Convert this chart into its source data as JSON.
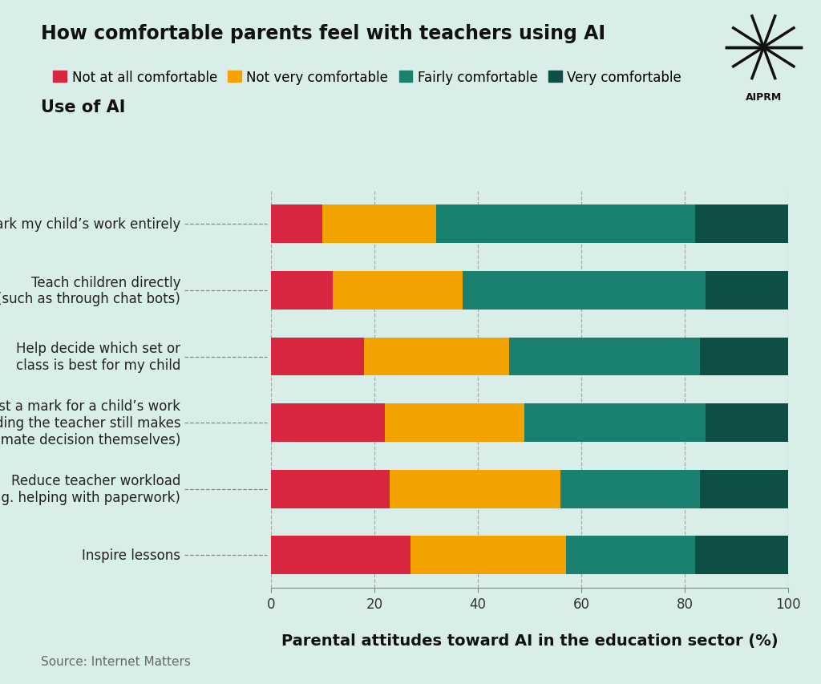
{
  "title": "How comfortable parents feel with teachers using AI",
  "subtitle": "Use of AI",
  "xlabel": "Parental attitudes toward AI in the education sector (%)",
  "source": "Source: Internet Matters",
  "background_color": "#daeee9",
  "categories": [
    "Inspire lessons",
    "Reduce teacher workload\ne.g. helping with paperwork)",
    "Suggest a mark for a child’s work\n(providing the teacher still makes\nthe ultimate decision themselves)",
    "Help decide which set or\nclass is best for my child",
    "Teach children directly\n(such as through chat bots)",
    "Mark my child’s work entirely"
  ],
  "series": {
    "Not at all comfortable": [
      10,
      12,
      18,
      22,
      23,
      27
    ],
    "Not very comfortable": [
      22,
      25,
      28,
      27,
      33,
      30
    ],
    "Fairly comfortable": [
      50,
      47,
      37,
      35,
      27,
      25
    ],
    "Very comfortable": [
      18,
      16,
      17,
      16,
      17,
      18
    ]
  },
  "colors": {
    "Not at all comfortable": "#d7263d",
    "Not very comfortable": "#f4a200",
    "Fairly comfortable": "#1a8070",
    "Very comfortable": "#0d4f45"
  },
  "legend_order": [
    "Not at all comfortable",
    "Not very comfortable",
    "Fairly comfortable",
    "Very comfortable"
  ],
  "xlim": [
    0,
    100
  ],
  "xticks": [
    0,
    20,
    40,
    60,
    80,
    100
  ],
  "title_fontsize": 17,
  "subtitle_fontsize": 15,
  "label_fontsize": 12,
  "legend_fontsize": 12,
  "source_fontsize": 11,
  "xlabel_fontsize": 14,
  "bar_height": 0.58
}
